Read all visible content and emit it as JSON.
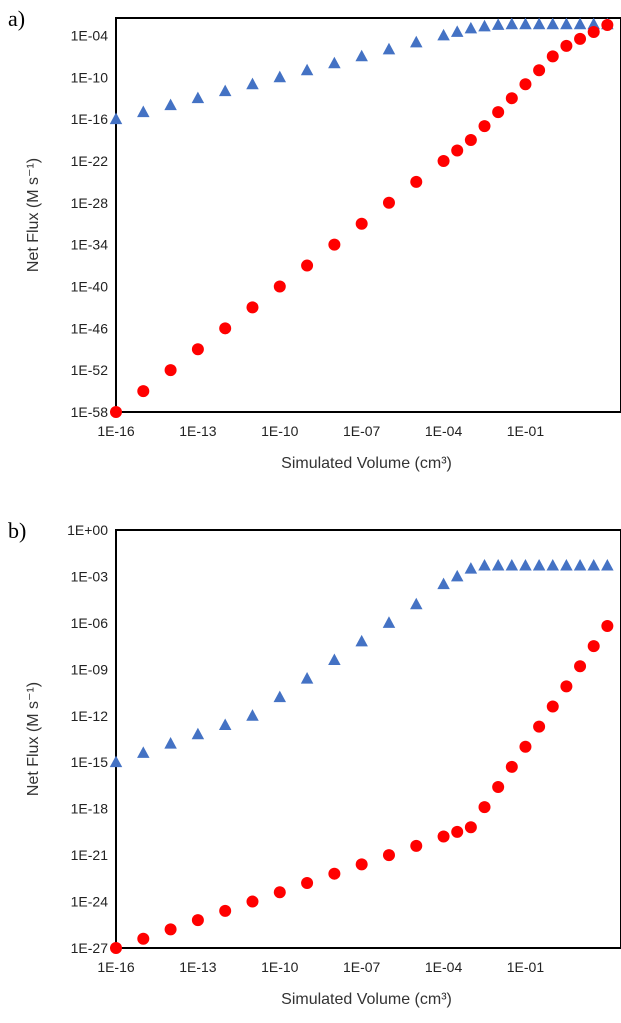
{
  "chart_data": [
    {
      "panel_label": "a)",
      "type": "scatter",
      "title": "",
      "xlabel": "Simulated Volume (cm³)",
      "ylabel": "Net Flux (M s⁻¹)",
      "xscale": "log",
      "yscale": "log",
      "xlim_exp": [
        -16,
        2.5
      ],
      "ylim_exp": [
        -58,
        -1.5
      ],
      "x_tick_labels": [
        "1E-16",
        "1E-13",
        "1E-10",
        "1E-07",
        "1E-04",
        "1E-01"
      ],
      "x_tick_exps": [
        -16,
        -13,
        -10,
        -7,
        -4,
        -1
      ],
      "y_tick_labels": [
        "1E-04",
        "1E-10",
        "1E-16",
        "1E-22",
        "1E-28",
        "1E-34",
        "1E-40",
        "1E-46",
        "1E-52",
        "1E-58"
      ],
      "y_tick_exps": [
        -4,
        -10,
        -16,
        -22,
        -28,
        -34,
        -40,
        -46,
        -52,
        -58
      ],
      "grid": false,
      "legend": "none",
      "series": [
        {
          "marker": "triangle",
          "color": "#4472C4",
          "x_exp": [
            -16,
            -15,
            -14,
            -13,
            -12,
            -11,
            -10,
            -9,
            -8,
            -7,
            -6,
            -5,
            -4,
            -3.5,
            -3,
            -2.5,
            -2,
            -1.5,
            -1,
            -0.5,
            0,
            0.5,
            1,
            1.5,
            2
          ],
          "y_exp": [
            -16,
            -15,
            -14,
            -13,
            -12,
            -11,
            -10,
            -9,
            -8,
            -7,
            -6,
            -5,
            -4,
            -3.5,
            -3,
            -2.7,
            -2.5,
            -2.4,
            -2.4,
            -2.4,
            -2.4,
            -2.4,
            -2.4,
            -2.4,
            -2.4
          ]
        },
        {
          "marker": "circle",
          "color": "#FF0000",
          "x_exp": [
            -16,
            -15,
            -14,
            -13,
            -12,
            -11,
            -10,
            -9,
            -8,
            -7,
            -6,
            -5,
            -4,
            -3.5,
            -3,
            -2.5,
            -2,
            -1.5,
            -1,
            -0.5,
            0,
            0.5,
            1,
            1.5,
            2
          ],
          "y_exp": [
            -58,
            -55,
            -52,
            -49,
            -46,
            -43,
            -40,
            -37,
            -34,
            -31,
            -28,
            -25,
            -22,
            -20.5,
            -19,
            -17,
            -15,
            -13,
            -11,
            -9,
            -7,
            -5.5,
            -4.5,
            -3.5,
            -2.5
          ]
        }
      ]
    },
    {
      "panel_label": "b)",
      "type": "scatter",
      "title": "",
      "xlabel": "Simulated Volume (cm³)",
      "ylabel": "Net Flux (M s⁻¹)",
      "xscale": "log",
      "yscale": "log",
      "xlim_exp": [
        -16,
        2.5
      ],
      "ylim_exp": [
        -27,
        0
      ],
      "x_tick_labels": [
        "1E-16",
        "1E-13",
        "1E-10",
        "1E-07",
        "1E-04",
        "1E-01"
      ],
      "x_tick_exps": [
        -16,
        -13,
        -10,
        -7,
        -4,
        -1
      ],
      "y_tick_labels": [
        "1E+00",
        "1E-03",
        "1E-06",
        "1E-09",
        "1E-12",
        "1E-15",
        "1E-18",
        "1E-21",
        "1E-24",
        "1E-27"
      ],
      "y_tick_exps": [
        0,
        -3,
        -6,
        -9,
        -12,
        -15,
        -18,
        -21,
        -24,
        -27
      ],
      "grid": false,
      "legend": "none",
      "series": [
        {
          "marker": "triangle",
          "color": "#4472C4",
          "x_exp": [
            -16,
            -15,
            -14,
            -13,
            -12,
            -11,
            -10,
            -9,
            -8,
            -7,
            -6,
            -5,
            -4,
            -3.5,
            -3,
            -2.5,
            -2,
            -1.5,
            -1,
            -0.5,
            0,
            0.5,
            1,
            1.5,
            2
          ],
          "y_exp": [
            -15,
            -14.4,
            -13.8,
            -13.2,
            -12.6,
            -12,
            -10.8,
            -9.6,
            -8.4,
            -7.2,
            -6,
            -4.8,
            -3.5,
            -3,
            -2.5,
            -2.3,
            -2.3,
            -2.3,
            -2.3,
            -2.3,
            -2.3,
            -2.3,
            -2.3,
            -2.3,
            -2.3
          ]
        },
        {
          "marker": "circle",
          "color": "#FF0000",
          "x_exp": [
            -16,
            -15,
            -14,
            -13,
            -12,
            -11,
            -10,
            -9,
            -8,
            -7,
            -6,
            -5,
            -4,
            -3.5,
            -3,
            -2.5,
            -2,
            -1.5,
            -1,
            -0.5,
            0,
            0.5,
            1,
            1.5,
            2
          ],
          "y_exp": [
            -27,
            -26.4,
            -25.8,
            -25.2,
            -24.6,
            -24,
            -23.4,
            -22.8,
            -22.2,
            -21.6,
            -21,
            -20.4,
            -19.8,
            -19.5,
            -19.2,
            -17.9,
            -16.6,
            -15.3,
            -14,
            -12.7,
            -11.4,
            -10.1,
            -8.8,
            -7.5,
            -6.2
          ]
        }
      ]
    }
  ]
}
